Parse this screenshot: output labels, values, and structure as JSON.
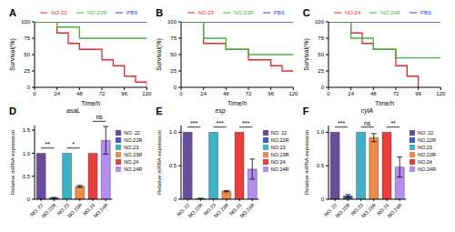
{
  "chart_data": [
    {
      "type": "line",
      "panel": "A",
      "x_label": "Time/h",
      "y_label": "Survival(%)",
      "xlim": [
        0,
        120
      ],
      "xticks": [
        0,
        24,
        48,
        72,
        96,
        120
      ],
      "ylim": [
        0,
        100
      ],
      "yticks": [
        0,
        25,
        50,
        75,
        100
      ],
      "line_style": "step",
      "legend": "top right",
      "series": [
        {
          "name": "PBS",
          "color": "#2f3fd6",
          "x": [
            0,
            120
          ],
          "values": [
            100,
            100
          ]
        },
        {
          "name": "NO.22",
          "color": "#e8262b",
          "x": [
            0,
            24,
            36,
            48,
            72,
            84,
            96,
            108,
            120
          ],
          "values": [
            100,
            83,
            67,
            58,
            42,
            33,
            17,
            8,
            0
          ]
        },
        {
          "name": "NO.22R",
          "color": "#3cb83c",
          "x": [
            0,
            24,
            48,
            120
          ],
          "values": [
            100,
            92,
            75,
            75
          ]
        }
      ]
    },
    {
      "type": "line",
      "panel": "B",
      "x_label": "Time/h",
      "y_label": "Survival(%)",
      "xlim": [
        0,
        120
      ],
      "xticks": [
        0,
        24,
        48,
        72,
        96,
        120
      ],
      "ylim": [
        0,
        100
      ],
      "yticks": [
        0,
        25,
        50,
        75,
        100
      ],
      "line_style": "step",
      "legend": "top right",
      "series": [
        {
          "name": "PBS",
          "color": "#2f3fd6",
          "x": [
            0,
            120
          ],
          "values": [
            100,
            100
          ]
        },
        {
          "name": "NO.23",
          "color": "#e8262b",
          "x": [
            0,
            24,
            48,
            72,
            96,
            108,
            120
          ],
          "values": [
            100,
            67,
            58,
            42,
            33,
            25,
            25
          ]
        },
        {
          "name": "NO.23R",
          "color": "#3cb83c",
          "x": [
            0,
            24,
            48,
            72,
            120
          ],
          "values": [
            100,
            75,
            58,
            50,
            50
          ]
        }
      ]
    },
    {
      "type": "line",
      "panel": "C",
      "x_label": "Time/h",
      "y_label": "Survival(%)",
      "xlim": [
        0,
        120
      ],
      "xticks": [
        0,
        24,
        48,
        72,
        96,
        120
      ],
      "ylim": [
        0,
        100
      ],
      "yticks": [
        0,
        25,
        50,
        75,
        100
      ],
      "line_style": "step",
      "legend": "top right",
      "series": [
        {
          "name": "PBS",
          "color": "#2f3fd6",
          "x": [
            0,
            120
          ],
          "values": [
            100,
            100
          ]
        },
        {
          "name": "NO.24",
          "color": "#e8262b",
          "x": [
            0,
            24,
            36,
            48,
            72,
            84,
            96
          ],
          "values": [
            100,
            83,
            67,
            58,
            33,
            17,
            0
          ]
        },
        {
          "name": "NO.24R",
          "color": "#3cb83c",
          "x": [
            0,
            24,
            48,
            72,
            120
          ],
          "values": [
            100,
            75,
            58,
            45,
            45
          ]
        }
      ]
    },
    {
      "type": "bar",
      "panel": "D",
      "title": "asaL",
      "y_label": "Relative mRNA expression",
      "categories": [
        "NO. 22",
        "NO.22R",
        "NO.23",
        "NO.23R",
        "NO.24",
        "NO.24R"
      ],
      "values": [
        1,
        0.03,
        1,
        0.28,
        1,
        1.28
      ],
      "errors": [
        0,
        0.01,
        0,
        0.02,
        0,
        0.3
      ],
      "colors": [
        "#6a4c9c",
        "#3b5fc0",
        "#3fb1c7",
        "#f08a4b",
        "#e83e3e",
        "#b58cf0"
      ],
      "ylim": [
        0,
        1.6
      ],
      "yticks": [
        0,
        0.5,
        {
          "value": 1,
          "label": "1.0"
        },
        1.5
      ],
      "legend": "right",
      "annotations": [
        {
          "text": "**",
          "pair": [
            "NO. 22",
            "NO.22R"
          ]
        },
        {
          "text": "*",
          "pair": [
            "NO.23",
            "NO.23R"
          ]
        },
        {
          "text": "ns",
          "pair": [
            "NO.24",
            "NO.24R"
          ]
        }
      ]
    },
    {
      "type": "bar",
      "panel": "E",
      "title": "esp",
      "y_label": "Relative mRNA expression",
      "categories": [
        "NO. 22",
        "NO.22R",
        "NO.23",
        "NO.23R",
        "NO.24",
        "NO.24R"
      ],
      "values": [
        1,
        0.01,
        1,
        0.12,
        1,
        0.45
      ],
      "errors": [
        0,
        0.005,
        0,
        0.01,
        0,
        0.15
      ],
      "colors": [
        "#6a4c9c",
        "#3b5fc0",
        "#3fb1c7",
        "#f08a4b",
        "#e83e3e",
        "#b58cf0"
      ],
      "ylim": [
        0,
        1.1
      ],
      "yticks": [
        0,
        0.5,
        {
          "value": 1,
          "label": "1.0"
        }
      ],
      "legend": "right",
      "annotations": [
        {
          "text": "***",
          "pair": [
            "NO. 22",
            "NO.22R"
          ]
        },
        {
          "text": "***",
          "pair": [
            "NO.23",
            "NO.23R"
          ]
        },
        {
          "text": "***",
          "pair": [
            "NO.24",
            "NO.24R"
          ]
        }
      ]
    },
    {
      "type": "bar",
      "panel": "F",
      "title": "cylA",
      "y_label": "Relative mRNA expression",
      "categories": [
        "NO. 22",
        "NO.22R",
        "NO.23",
        "NO.23R",
        "NO.24",
        "NO.24R"
      ],
      "values": [
        1,
        0.05,
        1,
        0.92,
        1,
        0.48
      ],
      "errors": [
        0,
        0.02,
        0,
        0.06,
        0,
        0.15
      ],
      "colors": [
        "#6a4c9c",
        "#3b5fc0",
        "#3fb1c7",
        "#f08a4b",
        "#e83e3e",
        "#b58cf0"
      ],
      "ylim": [
        0,
        1.1
      ],
      "yticks": [
        0,
        0.5,
        {
          "value": 1,
          "label": "1.0"
        }
      ],
      "legend": "right",
      "annotations": [
        {
          "text": "***",
          "pair": [
            "NO. 22",
            "NO.22R"
          ]
        },
        {
          "text": "ns",
          "pair": [
            "NO.23",
            "NO.23R"
          ]
        },
        {
          "text": "**",
          "pair": [
            "NO.24",
            "NO.24R"
          ]
        }
      ]
    }
  ]
}
